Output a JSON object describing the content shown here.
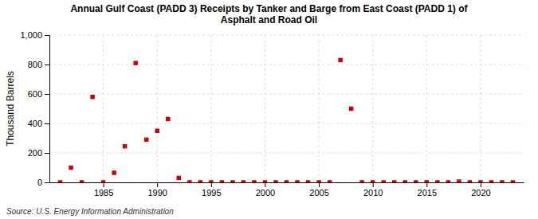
{
  "chart_data": {
    "type": "scatter",
    "title": "Annual Gulf Coast (PADD 3) Receipts by Tanker and Barge from East Coast (PADD 1) of\nAsphalt and Road Oil",
    "ylabel": "Thousand Barrels",
    "source": "Source: U.S. Energy Information Administration",
    "x": [
      1981,
      1982,
      1983,
      1984,
      1985,
      1986,
      1987,
      1988,
      1989,
      1990,
      1991,
      1992,
      1993,
      1994,
      1995,
      1996,
      1997,
      1998,
      1999,
      2000,
      2001,
      2002,
      2003,
      2004,
      2005,
      2006,
      2007,
      2008,
      2009,
      2010,
      2011,
      2012,
      2013,
      2014,
      2015,
      2016,
      2017,
      2018,
      2019,
      2020,
      2021,
      2022,
      2023
    ],
    "values": [
      0,
      100,
      0,
      580,
      0,
      65,
      245,
      810,
      290,
      350,
      430,
      30,
      0,
      0,
      0,
      0,
      0,
      0,
      0,
      0,
      0,
      0,
      0,
      0,
      0,
      0,
      830,
      500,
      0,
      0,
      0,
      0,
      0,
      0,
      0,
      0,
      0,
      5,
      0,
      0,
      0,
      0,
      0
    ],
    "color": "#cc0000",
    "marker": "square",
    "xlim": [
      1980,
      2024
    ],
    "ylim": [
      0,
      1000
    ],
    "xticks": [
      1985,
      1990,
      1995,
      2000,
      2005,
      2010,
      2015,
      2020
    ],
    "yticks": [
      0,
      200,
      400,
      600,
      800,
      {
        "value": 1000,
        "label": "1,000"
      }
    ],
    "grid": true
  }
}
